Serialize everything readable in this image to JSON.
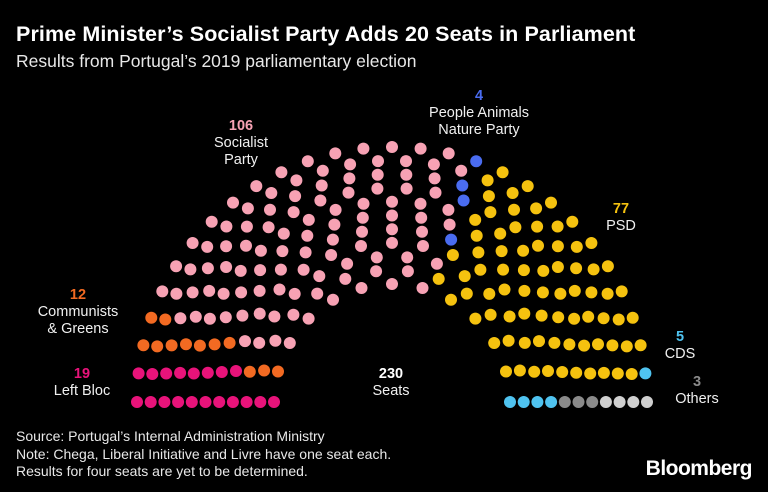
{
  "chart_data": {
    "type": "parliament",
    "title": "Prime Minister’s Socialist Party Adds 20 Seats in Parliament",
    "subtitle": "Results from Portugal’s 2019 parliamentary election",
    "total_seats": 230,
    "total_label": "Seats",
    "parties": [
      {
        "name": "Left Bloc",
        "seats": 19,
        "color": "#e8137a"
      },
      {
        "name": "Communists & Greens",
        "seats": 12,
        "color": "#f26a22"
      },
      {
        "name": "Socialist Party",
        "seats": 106,
        "color": "#f7a2b4"
      },
      {
        "name": "People Animals Nature Party",
        "seats": 4,
        "color": "#4a6cf0"
      },
      {
        "name": "PSD",
        "seats": 77,
        "color": "#f5c20f"
      },
      {
        "name": "CDS",
        "seats": 5,
        "color": "#4fc3f0"
      },
      {
        "name": "Others",
        "seats": 3,
        "color": "#8a8a8a"
      }
    ],
    "undetermined": {
      "seats": 4,
      "color": "#cfcfcf"
    },
    "labels": {
      "left_bloc": {
        "value": "19",
        "name": "Left Bloc",
        "color": "#e8137a"
      },
      "communists": {
        "value": "12",
        "name_line1": "Communists",
        "name_line2": "& Greens",
        "color": "#f26a22"
      },
      "socialist": {
        "value": "106",
        "name_line1": "Socialist",
        "name_line2": "Party",
        "color": "#f7a2b4"
      },
      "pan": {
        "value": "4",
        "name_line1": "People Animals",
        "name_line2": "Nature Party",
        "color": "#4a6cf0"
      },
      "psd": {
        "value": "77",
        "name": "PSD",
        "color": "#f5c20f"
      },
      "cds": {
        "value": "5",
        "name": "CDS",
        "color": "#4fc3f0"
      },
      "others": {
        "value": "3",
        "name": "Others",
        "color": "#8a8a8a"
      },
      "total": {
        "value": "230",
        "name": "Seats"
      }
    }
  },
  "footer": {
    "line1": "Source: Portugal’s Internal Administration Ministry",
    "line2": "Note: Chega, Liberal Initiative and Livre have one seat each.",
    "line3": "Results for four seats are yet to be determined."
  },
  "brand": "Bloomberg"
}
